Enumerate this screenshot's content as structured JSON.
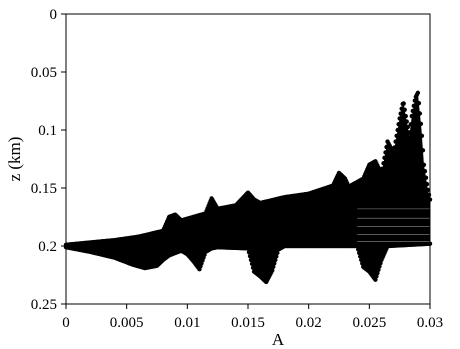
{
  "chart_data": {
    "type": "scatter",
    "title": "",
    "xlabel": "A",
    "ylabel": "z (km)",
    "xlim": [
      0,
      0.03
    ],
    "ylim": [
      0,
      0.25
    ],
    "y_inverted": true,
    "grid": false,
    "legend": "none",
    "marker_color": "#000000",
    "x_ticks": [
      0,
      0.005,
      0.01,
      0.015,
      0.02,
      0.025,
      0.03
    ],
    "x_tick_labels": [
      "0",
      "0.005",
      "0.01",
      "0.015",
      "0.02",
      "0.025",
      "0.03"
    ],
    "y_ticks": [
      0,
      0.05,
      0.1,
      0.15,
      0.2,
      0.25
    ],
    "y_tick_labels": [
      "0",
      "0.05",
      "0.1",
      "0.15",
      "0.2",
      "0.25"
    ],
    "series": [
      {
        "kind": "upper_envelope",
        "x": [
          0,
          0.002,
          0.004,
          0.006,
          0.008,
          0.0085,
          0.009,
          0.0095,
          0.0115,
          0.012,
          0.0125,
          0.014,
          0.015,
          0.0155,
          0.016,
          0.018,
          0.02,
          0.022,
          0.0225,
          0.023,
          0.0233,
          0.0245,
          0.025,
          0.0255,
          0.026,
          0.0265,
          0.027,
          0.0275,
          0.0278,
          0.028,
          0.0283,
          0.0285,
          0.0288,
          0.029,
          0.0293,
          0.0295,
          0.0298,
          0.03
        ],
        "y": [
          0.199,
          0.197,
          0.195,
          0.192,
          0.187,
          0.175,
          0.173,
          0.178,
          0.172,
          0.159,
          0.168,
          0.165,
          0.154,
          0.16,
          0.163,
          0.158,
          0.155,
          0.148,
          0.137,
          0.142,
          0.149,
          0.142,
          0.13,
          0.127,
          0.138,
          0.11,
          0.12,
          0.09,
          0.075,
          0.088,
          0.105,
          0.088,
          0.072,
          0.068,
          0.1,
          0.13,
          0.15,
          0.16
        ]
      },
      {
        "kind": "lower_envelope",
        "x": [
          0,
          0.002,
          0.004,
          0.0055,
          0.0065,
          0.0075,
          0.008,
          0.0085,
          0.009,
          0.0095,
          0.01,
          0.0105,
          0.011,
          0.0115,
          0.012,
          0.0125,
          0.015,
          0.0155,
          0.016,
          0.0165,
          0.017,
          0.0175,
          0.018,
          0.024,
          0.0245,
          0.025,
          0.0255,
          0.026,
          0.0265,
          0.03
        ],
        "y": [
          0.201,
          0.205,
          0.21,
          0.216,
          0.219,
          0.217,
          0.212,
          0.208,
          0.206,
          0.204,
          0.207,
          0.213,
          0.22,
          0.205,
          0.202,
          0.201,
          0.202,
          0.222,
          0.226,
          0.231,
          0.221,
          0.203,
          0.2,
          0.2,
          0.218,
          0.222,
          0.229,
          0.212,
          0.2,
          0.198
        ]
      }
    ]
  }
}
